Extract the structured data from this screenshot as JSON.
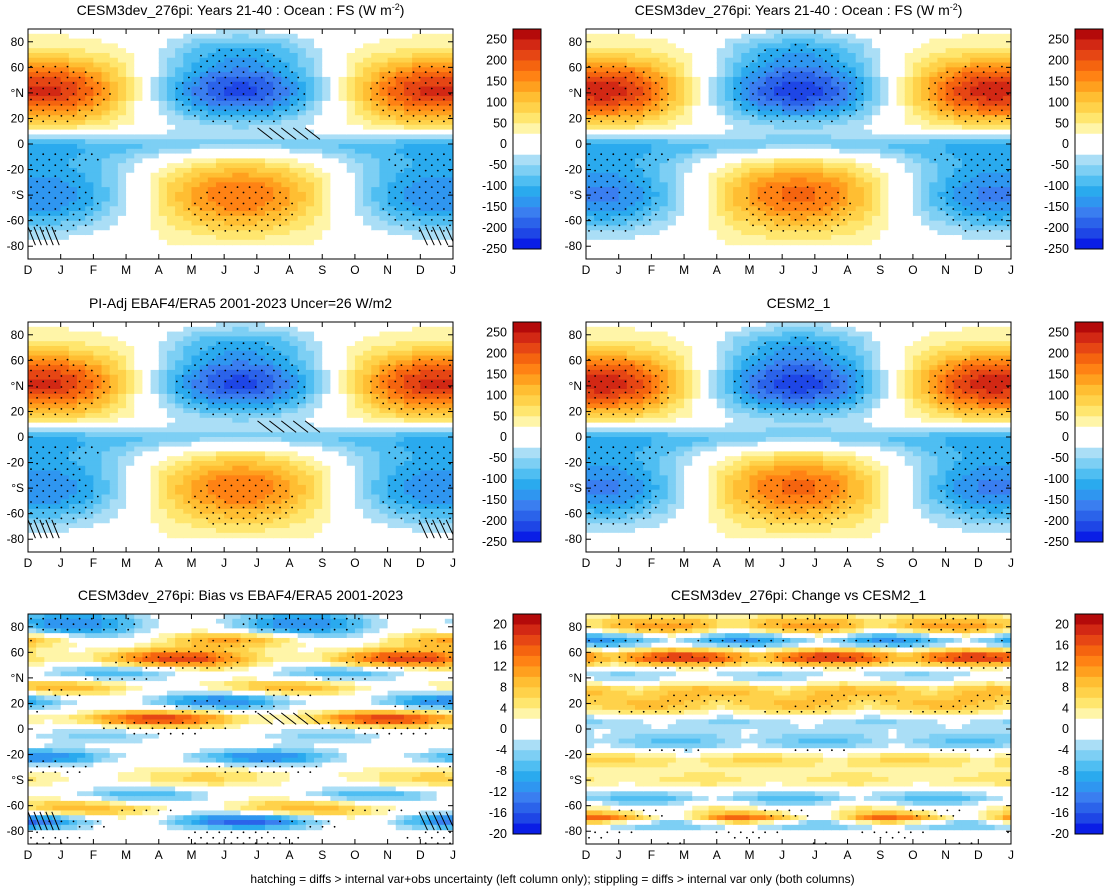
{
  "figure": {
    "footnote": "hatching = diffs > internal var+obs uncertainty (left column only); stippling = diffs > internal var only (both columns)"
  },
  "chart_data": [
    {
      "type": "heatmap",
      "title": "CESM3dev_276pi: Years 21-40 : Ocean : FS (W m",
      "title_sup": "-2",
      "title_end": ")",
      "field": "climo_obs_like",
      "xlabel": "",
      "ylabel": "",
      "x_ticks": [
        "D",
        "J",
        "F",
        "M",
        "A",
        "M",
        "J",
        "J",
        "A",
        "S",
        "O",
        "N",
        "D",
        "J"
      ],
      "y_ticks": [
        "80",
        "60",
        "°N",
        "20",
        "0",
        "-20",
        "°S",
        "-60",
        "-80"
      ],
      "y_values": [
        80,
        60,
        40,
        20,
        0,
        -20,
        -40,
        -60,
        -80
      ],
      "ylim": [
        -90,
        90
      ],
      "colorbar": {
        "levels": [
          "250",
          "200",
          "150",
          "100",
          "50",
          "0",
          "-50",
          "-100",
          "-150",
          "-200",
          "-250"
        ],
        "range": [
          -275,
          275
        ]
      },
      "hatching": true,
      "stippling": true
    },
    {
      "type": "heatmap",
      "title": "CESM3dev_276pi: Years 21-40 : Ocean : FS (W m",
      "title_sup": "-2",
      "title_end": ")",
      "field": "climo_model",
      "xlabel": "",
      "ylabel": "",
      "x_ticks": [
        "D",
        "J",
        "F",
        "M",
        "A",
        "M",
        "J",
        "J",
        "A",
        "S",
        "O",
        "N",
        "D",
        "J"
      ],
      "y_ticks": [
        "80",
        "60",
        "°N",
        "20",
        "0",
        "-20",
        "°S",
        "-60",
        "-80"
      ],
      "y_values": [
        80,
        60,
        40,
        20,
        0,
        -20,
        -40,
        -60,
        -80
      ],
      "ylim": [
        -90,
        90
      ],
      "colorbar": {
        "levels": [
          "250",
          "200",
          "150",
          "100",
          "50",
          "0",
          "-50",
          "-100",
          "-150",
          "-200",
          "-250"
        ],
        "range": [
          -275,
          275
        ]
      },
      "hatching": false,
      "stippling": true
    },
    {
      "type": "heatmap",
      "title": "PI-Adj EBAF4/ERA5 2001-2023 Uncer=26 W/m2",
      "title_sup": "",
      "title_end": "",
      "field": "climo_obs",
      "xlabel": "",
      "ylabel": "",
      "x_ticks": [
        "D",
        "J",
        "F",
        "M",
        "A",
        "M",
        "J",
        "J",
        "A",
        "S",
        "O",
        "N",
        "D",
        "J"
      ],
      "y_ticks": [
        "80",
        "60",
        "°N",
        "20",
        "0",
        "-20",
        "°S",
        "-60",
        "-80"
      ],
      "y_values": [
        80,
        60,
        40,
        20,
        0,
        -20,
        -40,
        -60,
        -80
      ],
      "ylim": [
        -90,
        90
      ],
      "colorbar": {
        "levels": [
          "250",
          "200",
          "150",
          "100",
          "50",
          "0",
          "-50",
          "-100",
          "-150",
          "-200",
          "-250"
        ],
        "range": [
          -275,
          275
        ]
      },
      "hatching": true,
      "stippling": true
    },
    {
      "type": "heatmap",
      "title": "CESM2_1",
      "title_sup": "",
      "title_end": "",
      "field": "climo_model",
      "xlabel": "",
      "ylabel": "",
      "x_ticks": [
        "D",
        "J",
        "F",
        "M",
        "A",
        "M",
        "J",
        "J",
        "A",
        "S",
        "O",
        "N",
        "D",
        "J"
      ],
      "y_ticks": [
        "80",
        "60",
        "°N",
        "20",
        "0",
        "-20",
        "°S",
        "-60",
        "-80"
      ],
      "y_values": [
        80,
        60,
        40,
        20,
        0,
        -20,
        -40,
        -60,
        -80
      ],
      "ylim": [
        -90,
        90
      ],
      "colorbar": {
        "levels": [
          "250",
          "200",
          "150",
          "100",
          "50",
          "0",
          "-50",
          "-100",
          "-150",
          "-200",
          "-250"
        ],
        "range": [
          -275,
          275
        ]
      },
      "hatching": false,
      "stippling": true
    },
    {
      "type": "heatmap",
      "title": "CESM3dev_276pi: Bias vs EBAF4/ERA5 2001-2023",
      "title_sup": "",
      "title_end": "",
      "field": "bias",
      "xlabel": "",
      "ylabel": "",
      "x_ticks": [
        "D",
        "J",
        "F",
        "M",
        "A",
        "M",
        "J",
        "J",
        "A",
        "S",
        "O",
        "N",
        "D",
        "J"
      ],
      "y_ticks": [
        "80",
        "60",
        "°N",
        "20",
        "0",
        "-20",
        "°S",
        "-60",
        "-80"
      ],
      "y_values": [
        80,
        60,
        40,
        20,
        0,
        -20,
        -40,
        -60,
        -80
      ],
      "ylim": [
        -90,
        90
      ],
      "colorbar": {
        "levels": [
          "20",
          "16",
          "12",
          "8",
          "4",
          "0",
          "-4",
          "-8",
          "-12",
          "-16",
          "-20"
        ],
        "range": [
          -22,
          22
        ]
      },
      "hatching": true,
      "stippling": true
    },
    {
      "type": "heatmap",
      "title": "CESM3dev_276pi: Change vs CESM2_1",
      "title_sup": "",
      "title_end": "",
      "field": "change",
      "xlabel": "",
      "ylabel": "",
      "x_ticks": [
        "D",
        "J",
        "F",
        "M",
        "A",
        "M",
        "J",
        "J",
        "A",
        "S",
        "O",
        "N",
        "D",
        "J"
      ],
      "y_ticks": [
        "80",
        "60",
        "°N",
        "20",
        "0",
        "-20",
        "°S",
        "-60",
        "-80"
      ],
      "y_values": [
        80,
        60,
        40,
        20,
        0,
        -20,
        -40,
        -60,
        -80
      ],
      "ylim": [
        -90,
        90
      ],
      "colorbar": {
        "levels": [
          "20",
          "16",
          "12",
          "8",
          "4",
          "0",
          "-4",
          "-8",
          "-12",
          "-16",
          "-20"
        ],
        "range": [
          -22,
          22
        ]
      },
      "hatching": false,
      "stippling": true
    }
  ],
  "palette": [
    "#0a1ee6",
    "#1e46e6",
    "#2b63ea",
    "#3a7ef0",
    "#2f96f0",
    "#2aaaee",
    "#4fbef2",
    "#7dcff4",
    "#aadef6",
    "#ffffff",
    "#ffffff",
    "#fff5a8",
    "#ffe66e",
    "#ffd24a",
    "#ffbe32",
    "#ffa01e",
    "#ff8214",
    "#f5640f",
    "#e64614",
    "#d22814",
    "#b40a0a"
  ],
  "accent": {
    "hatch": "#000000",
    "stipple": "#000000"
  }
}
